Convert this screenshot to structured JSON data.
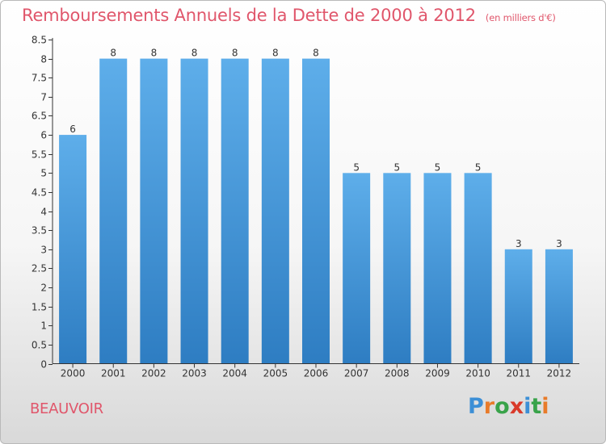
{
  "header": {
    "title": "Remboursements Annuels de la Dette de 2000 à 2012",
    "unit": "(en milliers d'€)"
  },
  "footer": {
    "commune": "BEAUVOIR",
    "logo_letters": [
      "P",
      "r",
      "o",
      "x",
      "i",
      "t",
      "i"
    ],
    "logo_colors": [
      "#3c8fd6",
      "#e87b2a",
      "#39a34a",
      "#d93a2a",
      "#3c8fd6",
      "#39a34a",
      "#e87b2a"
    ]
  },
  "colors": {
    "title": "#e0566b",
    "bar_top": "#5eaeea",
    "bar_bottom": "#2e7dc2"
  },
  "chart_data": {
    "type": "bar",
    "title": "Remboursements Annuels de la Dette de 2000 à 2012",
    "ylabel": "(en milliers d'€)",
    "xlabel": "",
    "categories": [
      "2000",
      "2001",
      "2002",
      "2003",
      "2004",
      "2005",
      "2006",
      "2007",
      "2008",
      "2009",
      "2010",
      "2011",
      "2012"
    ],
    "values": [
      6,
      8,
      8,
      8,
      8,
      8,
      8,
      5,
      5,
      5,
      5,
      3,
      3
    ],
    "ylim": [
      0,
      8.5
    ],
    "yticks": [
      0,
      0.5,
      1,
      1.5,
      2,
      2.5,
      3,
      3.5,
      4,
      4.5,
      5,
      5.5,
      6,
      6.5,
      7,
      7.5,
      8,
      8.5
    ],
    "ytick_labels": [
      "0",
      "0.5",
      "1",
      "1.5",
      "2",
      "2.5",
      "3",
      "3.5",
      "4",
      "4.5",
      "5",
      "5.5",
      "6",
      "6.5",
      "7",
      "7.5",
      "8",
      "8.5"
    ],
    "grid": false,
    "legend": "none"
  }
}
